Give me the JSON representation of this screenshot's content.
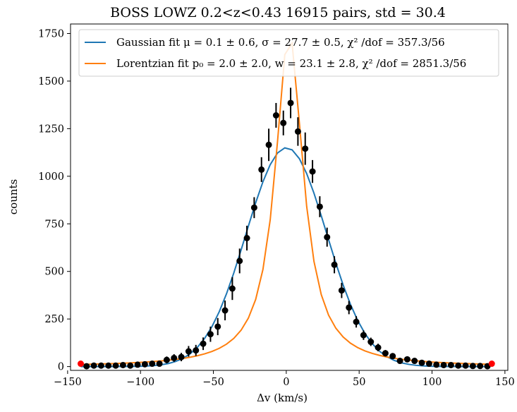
{
  "chart_data": {
    "type": "scatter",
    "title": "BOSS LOWZ 0.2<z<0.43 16915 pairs, std = 30.4",
    "xlabel": "Δv (km/s)",
    "ylabel": "counts",
    "xlim": [
      -148,
      152
    ],
    "ylim": [
      -20,
      1800
    ],
    "x_ticks": [
      -150,
      -100,
      -50,
      0,
      50,
      100,
      150
    ],
    "x_tick_labels": [
      "−150",
      "−100",
      "−50",
      "0",
      "50",
      "100",
      "150"
    ],
    "y_ticks": [
      0,
      250,
      500,
      750,
      1000,
      1250,
      1500,
      1750
    ],
    "y_tick_labels": [
      "0",
      "250",
      "500",
      "750",
      "1000",
      "1250",
      "1500",
      "1750"
    ],
    "grid": false,
    "legend_position": "top",
    "legend": [
      {
        "name": "Gaussian fit μ = 0.1 ± 0.6,  σ = 27.7 ± 0.5, χ² /dof = 357.3/56",
        "color": "#1f77b4"
      },
      {
        "name": "Lorentzian fit p₀ = 2.0 ± 2.0, w = 23.1 ± 2.8, χ² /dof = 2851.3/56",
        "color": "#ff7f0e"
      }
    ],
    "gaussian_fit": {
      "mu": 0.1,
      "sigma": 27.7,
      "amplitude": 1150,
      "color": "#1f77b4"
    },
    "lorentzian_fit": {
      "p0": 2.0,
      "w": 23.1,
      "amplitude": 1750,
      "color": "#ff7f0e"
    },
    "points": {
      "color": "#000000",
      "x": [
        -137,
        -132,
        -127,
        -122,
        -117,
        -112,
        -107,
        -102,
        -97,
        -92,
        -87,
        -82,
        -77,
        -72,
        -67,
        -62,
        -57,
        -52,
        -47,
        -42,
        -37,
        -32,
        -27,
        -22,
        -17,
        -12,
        -7,
        -2,
        3,
        8,
        13,
        18,
        23,
        28,
        33,
        38,
        43,
        48,
        53,
        58,
        63,
        68,
        73,
        78,
        83,
        88,
        93,
        98,
        103,
        108,
        113,
        118,
        123,
        128,
        133,
        138
      ],
      "y": [
        2,
        5,
        5,
        5,
        5,
        8,
        5,
        10,
        12,
        15,
        15,
        35,
        45,
        50,
        80,
        85,
        120,
        170,
        210,
        295,
        410,
        555,
        675,
        835,
        1035,
        1165,
        1320,
        1280,
        1385,
        1235,
        1145,
        1025,
        840,
        680,
        535,
        400,
        310,
        235,
        165,
        130,
        100,
        70,
        55,
        30,
        38,
        30,
        20,
        15,
        10,
        8,
        8,
        5,
        5,
        3,
        3,
        2
      ],
      "err": [
        5,
        6,
        6,
        6,
        7,
        8,
        7,
        9,
        10,
        11,
        12,
        18,
        20,
        22,
        28,
        29,
        33,
        40,
        45,
        52,
        60,
        65,
        65,
        55,
        65,
        85,
        65,
        65,
        80,
        75,
        85,
        60,
        55,
        50,
        45,
        40,
        35,
        30,
        25,
        22,
        20,
        17,
        15,
        12,
        13,
        12,
        10,
        8,
        7,
        6,
        6,
        5,
        5,
        4,
        4,
        4
      ]
    },
    "end_points": {
      "color": "#ff0000",
      "x": [
        -141,
        141
      ],
      "y": [
        15,
        15
      ]
    }
  }
}
